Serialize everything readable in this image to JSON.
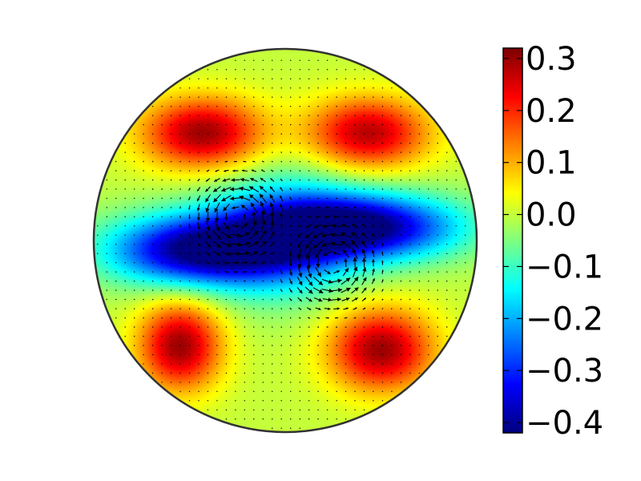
{
  "chart_data": {
    "type": "heatmap",
    "domain": "disk",
    "title": "",
    "xlabel": "",
    "ylabel": "",
    "colormap": "jet",
    "colorbar": {
      "vmin": -0.42,
      "vmax": 0.32,
      "ticks": [
        {
          "value": 0.3,
          "label": "0.3"
        },
        {
          "value": 0.2,
          "label": "0.2"
        },
        {
          "value": 0.1,
          "label": "0.1"
        },
        {
          "value": 0.0,
          "label": "0.0"
        },
        {
          "value": -0.1,
          "label": "−0.1"
        },
        {
          "value": -0.2,
          "label": "−0.2"
        },
        {
          "value": -0.3,
          "label": "−0.3"
        },
        {
          "value": -0.4,
          "label": "−0.4"
        }
      ]
    },
    "field": {
      "background": 0.0,
      "features": [
        {
          "name": "lobe-top-left",
          "x": -0.43,
          "y": 0.56,
          "amplitude": 0.3,
          "sx": 0.22,
          "sy": 0.13
        },
        {
          "name": "lobe-top-right",
          "x": 0.43,
          "y": 0.56,
          "amplitude": 0.28,
          "sx": 0.22,
          "sy": 0.13
        },
        {
          "name": "lobe-bottom-left",
          "x": -0.55,
          "y": -0.55,
          "amplitude": 0.3,
          "sx": 0.15,
          "sy": 0.16
        },
        {
          "name": "lobe-bottom-right",
          "x": 0.5,
          "y": -0.57,
          "amplitude": 0.3,
          "sx": 0.19,
          "sy": 0.15
        },
        {
          "name": "trough-left",
          "x": -0.45,
          "y": -0.05,
          "amplitude": -0.42,
          "sx": 0.33,
          "sy": 0.13
        },
        {
          "name": "trough-right",
          "x": 0.4,
          "y": 0.07,
          "amplitude": -0.42,
          "sx": 0.35,
          "sy": 0.12
        },
        {
          "name": "trough-center",
          "x": 0.0,
          "y": 0.03,
          "amplitude": -0.22,
          "sx": 0.27,
          "sy": 0.22
        }
      ]
    },
    "vector_field": {
      "type": "quiver",
      "vortices": [
        {
          "x": -0.25,
          "y": 0.12,
          "strength": 1.0
        },
        {
          "x": 0.25,
          "y": -0.12,
          "strength": 1.0
        }
      ]
    }
  }
}
